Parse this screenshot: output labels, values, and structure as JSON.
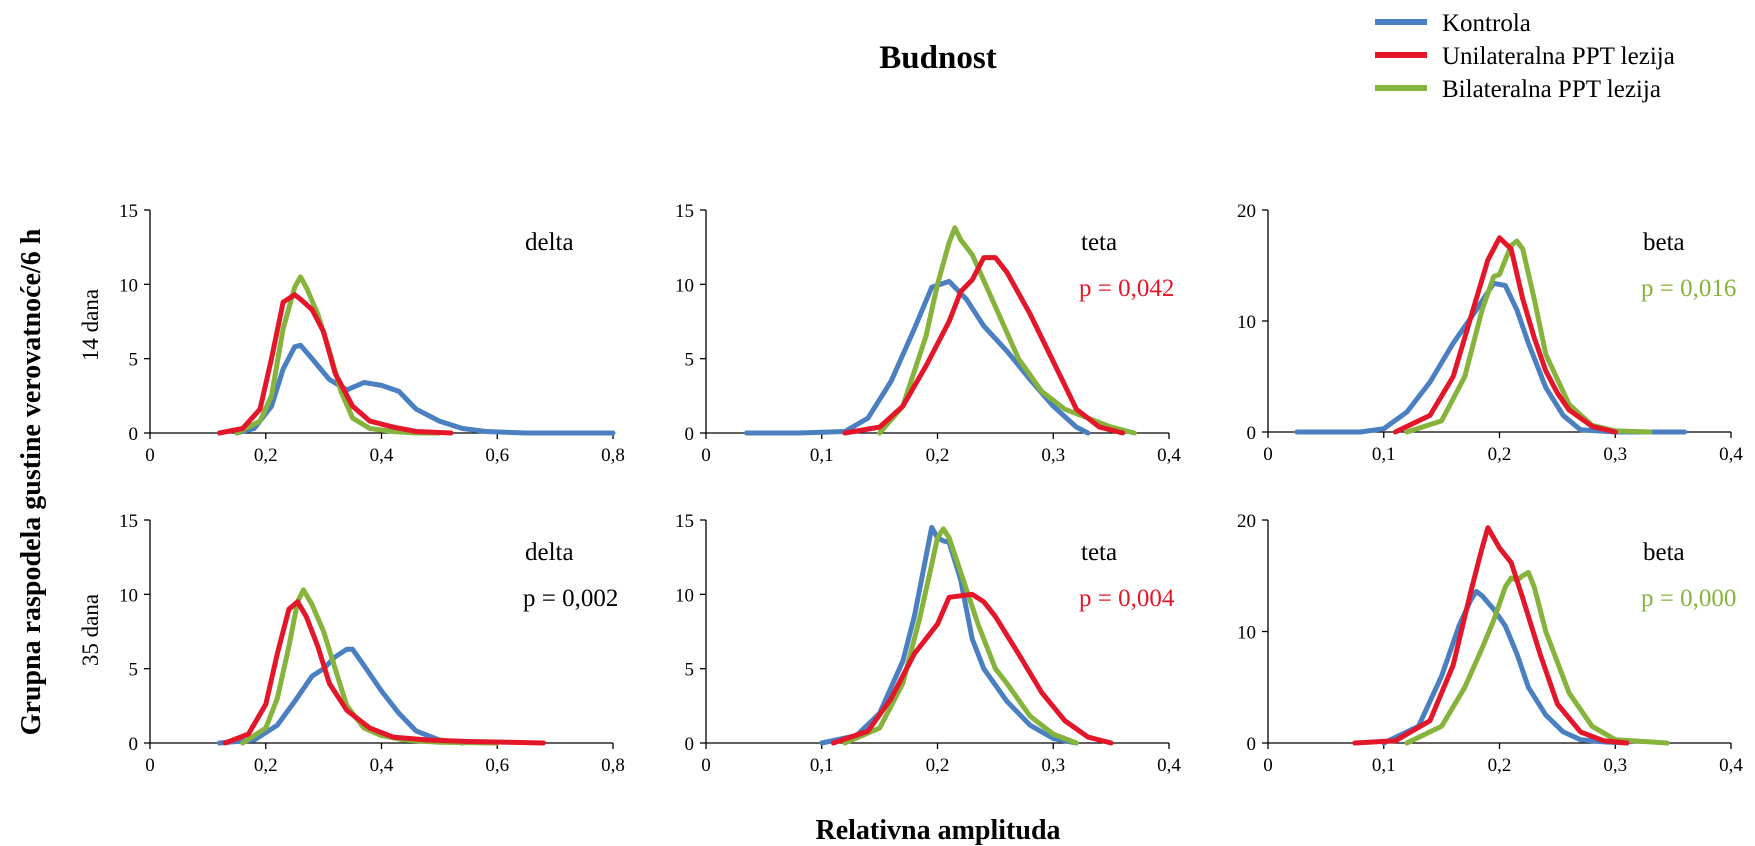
{
  "colors": {
    "Kontrola": "#4a7fc1",
    "Unilateralna PPT lezija": "#e4162a",
    "Bilateralna PPT lezija": "#85b33c"
  },
  "labels": {
    "title": "Budnost",
    "ylabel": "Grupna raspodela gustine verovatnoće/6 h",
    "xlabel": "Relativna amplituda",
    "rows": [
      "14 dana",
      "35 dana"
    ]
  },
  "legend": [
    "Kontrola",
    "Unilateralna PPT lezija",
    "Bilateralna PPT lezija"
  ],
  "chart_data": [
    {
      "type": "line",
      "band": "delta",
      "row": "14 dana",
      "p": "",
      "p_color": "#000000",
      "xlim": [
        0,
        0.8
      ],
      "ylim": [
        0,
        15
      ],
      "xticks": [
        "0",
        "0,2",
        "0,4",
        "0,6",
        "0,8"
      ],
      "yticks": [
        "0",
        "5",
        "10",
        "15"
      ],
      "series": [
        {
          "name": "Kontrola",
          "x": [
            0.15,
            0.18,
            0.21,
            0.23,
            0.25,
            0.26,
            0.28,
            0.31,
            0.34,
            0.37,
            0.4,
            0.43,
            0.46,
            0.5,
            0.54,
            0.58,
            0.65,
            0.8
          ],
          "y": [
            0,
            0.3,
            1.8,
            4.3,
            5.8,
            5.9,
            5.0,
            3.6,
            2.9,
            3.4,
            3.2,
            2.8,
            1.6,
            0.8,
            0.3,
            0.1,
            0,
            0
          ]
        },
        {
          "name": "Unilateralna PPT lezija",
          "x": [
            0.12,
            0.16,
            0.19,
            0.21,
            0.23,
            0.25,
            0.26,
            0.28,
            0.3,
            0.32,
            0.35,
            0.38,
            0.42,
            0.46,
            0.52
          ],
          "y": [
            0,
            0.3,
            1.6,
            5.0,
            8.8,
            9.3,
            9.0,
            8.3,
            6.8,
            4.0,
            1.8,
            0.8,
            0.4,
            0.1,
            0
          ]
        },
        {
          "name": "Bilateralna PPT lezija",
          "x": [
            0.15,
            0.19,
            0.21,
            0.23,
            0.25,
            0.26,
            0.27,
            0.29,
            0.31,
            0.33,
            0.35,
            0.38,
            0.42,
            0.46,
            0.5
          ],
          "y": [
            0,
            0.8,
            2.5,
            7.0,
            9.8,
            10.5,
            9.8,
            8.0,
            5.5,
            2.8,
            1.0,
            0.3,
            0.1,
            0,
            0
          ]
        }
      ]
    },
    {
      "type": "line",
      "band": "teta",
      "row": "14 dana",
      "p": "p = 0,042",
      "p_color": "#e4162a",
      "xlim": [
        0,
        0.4
      ],
      "ylim": [
        0,
        15
      ],
      "xticks": [
        "0",
        "0,1",
        "0,2",
        "0,3",
        "0,4"
      ],
      "yticks": [
        "0",
        "5",
        "10",
        "15"
      ],
      "series": [
        {
          "name": "Kontrola",
          "x": [
            0.035,
            0.08,
            0.12,
            0.14,
            0.16,
            0.18,
            0.195,
            0.21,
            0.225,
            0.24,
            0.26,
            0.28,
            0.3,
            0.32,
            0.33
          ],
          "y": [
            0,
            0,
            0.1,
            1.0,
            3.5,
            7.0,
            9.8,
            10.2,
            9.0,
            7.2,
            5.5,
            3.6,
            1.8,
            0.4,
            0
          ]
        },
        {
          "name": "Unilateralna PPT lezija",
          "x": [
            0.12,
            0.15,
            0.17,
            0.19,
            0.21,
            0.22,
            0.23,
            0.24,
            0.25,
            0.26,
            0.28,
            0.3,
            0.32,
            0.34,
            0.36
          ],
          "y": [
            0,
            0.4,
            1.8,
            4.5,
            7.5,
            9.5,
            10.3,
            11.8,
            11.8,
            10.8,
            8.0,
            4.8,
            1.6,
            0.4,
            0
          ]
        },
        {
          "name": "Bilateralna PPT lezija",
          "x": [
            0.15,
            0.17,
            0.19,
            0.2,
            0.21,
            0.215,
            0.22,
            0.23,
            0.25,
            0.27,
            0.29,
            0.31,
            0.33,
            0.35,
            0.37
          ],
          "y": [
            0,
            1.8,
            6.5,
            10.0,
            12.8,
            13.8,
            13.0,
            12.0,
            8.5,
            5.0,
            2.8,
            1.6,
            1.0,
            0.4,
            0
          ]
        }
      ]
    },
    {
      "type": "line",
      "band": "beta",
      "row": "14 dana",
      "p": "p = 0,016",
      "p_color": "#85b33c",
      "xlim": [
        0,
        0.4
      ],
      "ylim": [
        0,
        20
      ],
      "xticks": [
        "0",
        "0,1",
        "0,2",
        "0,3",
        "0,4"
      ],
      "yticks": [
        "0",
        "10",
        "20"
      ],
      "series": [
        {
          "name": "Kontrola",
          "x": [
            0.025,
            0.08,
            0.1,
            0.12,
            0.14,
            0.16,
            0.18,
            0.195,
            0.205,
            0.215,
            0.225,
            0.24,
            0.255,
            0.27,
            0.3,
            0.36
          ],
          "y": [
            0,
            0,
            0.3,
            1.8,
            4.5,
            8.0,
            11.0,
            13.4,
            13.2,
            11.0,
            8.0,
            4.0,
            1.5,
            0.2,
            0,
            0
          ]
        },
        {
          "name": "Unilateralna PPT lezija",
          "x": [
            0.11,
            0.14,
            0.16,
            0.18,
            0.19,
            0.2,
            0.21,
            0.22,
            0.23,
            0.24,
            0.25,
            0.26,
            0.28,
            0.3
          ],
          "y": [
            0,
            1.5,
            5.0,
            12.0,
            15.5,
            17.5,
            16.5,
            12.0,
            8.5,
            5.5,
            3.5,
            2.0,
            0.5,
            0
          ]
        },
        {
          "name": "Bilateralna PPT lezija",
          "x": [
            0.12,
            0.15,
            0.17,
            0.185,
            0.195,
            0.2,
            0.21,
            0.215,
            0.22,
            0.23,
            0.24,
            0.26,
            0.28,
            0.3,
            0.33
          ],
          "y": [
            0,
            1.0,
            5.0,
            11.0,
            14.0,
            14.2,
            16.8,
            17.2,
            16.5,
            12.0,
            7.0,
            2.5,
            0.6,
            0.1,
            0
          ]
        }
      ]
    },
    {
      "type": "line",
      "band": "delta",
      "row": "35 dana",
      "p": "p = 0,002",
      "p_color": "#000000",
      "xlim": [
        0,
        0.8
      ],
      "ylim": [
        0,
        15
      ],
      "xticks": [
        "0",
        "0,2",
        "0,4",
        "0,6",
        "0,8"
      ],
      "yticks": [
        "0",
        "5",
        "10",
        "15"
      ],
      "series": [
        {
          "name": "Kontrola",
          "x": [
            0.12,
            0.18,
            0.22,
            0.25,
            0.28,
            0.3,
            0.32,
            0.34,
            0.35,
            0.37,
            0.4,
            0.43,
            0.46,
            0.5,
            0.54
          ],
          "y": [
            0,
            0.2,
            1.2,
            2.8,
            4.5,
            5.0,
            5.8,
            6.3,
            6.3,
            5.2,
            3.5,
            2.0,
            0.8,
            0.2,
            0
          ]
        },
        {
          "name": "Unilateralna PPT lezija",
          "x": [
            0.13,
            0.17,
            0.2,
            0.22,
            0.24,
            0.255,
            0.27,
            0.29,
            0.31,
            0.34,
            0.38,
            0.42,
            0.48,
            0.55,
            0.68
          ],
          "y": [
            0,
            0.6,
            2.6,
            6.0,
            9.0,
            9.5,
            8.5,
            6.5,
            4.0,
            2.2,
            1.0,
            0.4,
            0.2,
            0.1,
            0
          ]
        },
        {
          "name": "Bilateralna PPT lezija",
          "x": [
            0.16,
            0.2,
            0.22,
            0.24,
            0.255,
            0.265,
            0.28,
            0.3,
            0.32,
            0.34,
            0.37,
            0.4,
            0.44,
            0.5,
            0.6
          ],
          "y": [
            0,
            1.0,
            3.0,
            6.5,
            9.5,
            10.3,
            9.3,
            7.5,
            5.0,
            2.5,
            1.0,
            0.5,
            0.2,
            0.05,
            0
          ]
        }
      ]
    },
    {
      "type": "line",
      "band": "teta",
      "row": "35 dana",
      "p": "p = 0,004",
      "p_color": "#e4162a",
      "xlim": [
        0,
        0.4
      ],
      "ylim": [
        0,
        15
      ],
      "xticks": [
        "0",
        "0,1",
        "0,2",
        "0,3",
        "0,4"
      ],
      "yticks": [
        "0",
        "5",
        "10",
        "15"
      ],
      "series": [
        {
          "name": "Kontrola",
          "x": [
            0.1,
            0.13,
            0.15,
            0.17,
            0.18,
            0.19,
            0.195,
            0.2,
            0.205,
            0.21,
            0.22,
            0.23,
            0.24,
            0.26,
            0.28,
            0.3,
            0.32
          ],
          "y": [
            0,
            0.5,
            2.0,
            5.5,
            8.5,
            12.5,
            14.5,
            13.8,
            13.6,
            13.5,
            11.0,
            7.0,
            5.0,
            2.8,
            1.2,
            0.3,
            0
          ]
        },
        {
          "name": "Unilateralna PPT lezija",
          "x": [
            0.11,
            0.14,
            0.16,
            0.18,
            0.2,
            0.21,
            0.22,
            0.23,
            0.24,
            0.25,
            0.27,
            0.29,
            0.31,
            0.33,
            0.35
          ],
          "y": [
            0,
            0.8,
            3.0,
            6.0,
            8.0,
            9.8,
            9.9,
            10.0,
            9.5,
            8.5,
            6.0,
            3.4,
            1.5,
            0.4,
            0
          ]
        },
        {
          "name": "Bilateralna PPT lezija",
          "x": [
            0.12,
            0.15,
            0.17,
            0.185,
            0.195,
            0.2,
            0.205,
            0.21,
            0.22,
            0.235,
            0.25,
            0.26,
            0.28,
            0.3,
            0.32
          ],
          "y": [
            0,
            1.0,
            4.0,
            8.5,
            12.0,
            13.8,
            14.4,
            13.8,
            11.5,
            8.0,
            5.0,
            4.0,
            1.8,
            0.6,
            0
          ]
        }
      ]
    },
    {
      "type": "line",
      "band": "beta",
      "row": "35 dana",
      "p": "p = 0,000",
      "p_color": "#85b33c",
      "xlim": [
        0,
        0.4
      ],
      "ylim": [
        0,
        20
      ],
      "xticks": [
        "0",
        "0,1",
        "0,2",
        "0,3",
        "0,4"
      ],
      "yticks": [
        "0",
        "10",
        "20"
      ],
      "series": [
        {
          "name": "Kontrola",
          "x": [
            0.1,
            0.13,
            0.15,
            0.165,
            0.175,
            0.18,
            0.185,
            0.195,
            0.205,
            0.215,
            0.225,
            0.24,
            0.255,
            0.27,
            0.29,
            0.31
          ],
          "y": [
            0,
            1.5,
            6.0,
            10.5,
            12.8,
            13.6,
            13.2,
            12.0,
            10.5,
            8.0,
            5.0,
            2.5,
            1.0,
            0.3,
            0.1,
            0
          ]
        },
        {
          "name": "Unilateralna PPT lezija",
          "x": [
            0.075,
            0.11,
            0.14,
            0.16,
            0.175,
            0.185,
            0.19,
            0.2,
            0.21,
            0.22,
            0.235,
            0.25,
            0.27,
            0.29,
            0.31
          ],
          "y": [
            0,
            0.2,
            2.0,
            7.0,
            13.5,
            17.5,
            19.3,
            17.5,
            16.2,
            13.0,
            8.0,
            3.5,
            1.0,
            0.2,
            0
          ]
        },
        {
          "name": "Bilateralna PPT lezija",
          "x": [
            0.12,
            0.15,
            0.17,
            0.185,
            0.195,
            0.205,
            0.21,
            0.215,
            0.22,
            0.225,
            0.23,
            0.24,
            0.26,
            0.28,
            0.3,
            0.345
          ],
          "y": [
            0,
            1.5,
            5.0,
            8.5,
            11.0,
            14.0,
            14.8,
            14.6,
            15.0,
            15.3,
            14.0,
            10.0,
            4.5,
            1.5,
            0.3,
            0
          ]
        }
      ]
    }
  ]
}
